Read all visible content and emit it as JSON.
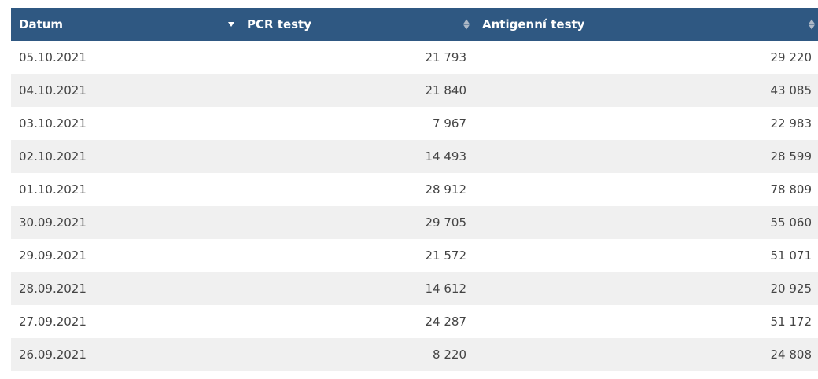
{
  "table": {
    "headers": [
      "Datum",
      "PCR testy",
      "Antigenní testy"
    ],
    "sort": {
      "column": "Datum",
      "direction": "descending"
    },
    "icons": {
      "sort": "sort-icon",
      "sort_desc": "sort-desc-icon"
    },
    "colors": {
      "header_bg": "#2f5882",
      "header_text": "#ffffff",
      "stripe": "#f0f0f0",
      "text": "#444444"
    },
    "rows": [
      [
        "05.10.2021",
        "21 793",
        "29 220"
      ],
      [
        "04.10.2021",
        "21 840",
        "43 085"
      ],
      [
        "03.10.2021",
        "7 967",
        "22 983"
      ],
      [
        "02.10.2021",
        "14 493",
        "28 599"
      ],
      [
        "01.10.2021",
        "28 912",
        "78 809"
      ],
      [
        "30.09.2021",
        "29 705",
        "55 060"
      ],
      [
        "29.09.2021",
        "21 572",
        "51 071"
      ],
      [
        "28.09.2021",
        "14 612",
        "20 925"
      ],
      [
        "27.09.2021",
        "24 287",
        "51 172"
      ],
      [
        "26.09.2021",
        "8 220",
        "24 808"
      ]
    ]
  }
}
